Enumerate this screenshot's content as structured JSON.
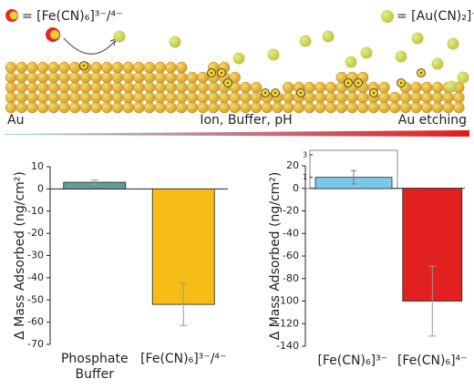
{
  "schematic": {
    "fe_legend": "= [Fe(CN)₆]³⁻/⁴⁻",
    "au_legend": "= [Au(CN)₂]⁻",
    "left_label": "Au",
    "middle_label": "Ion, Buffer, pH",
    "right_label": "Au etching"
  },
  "chart_data": [
    {
      "type": "bar",
      "ylabel": "Δ Mass Adsorbed (ng/cm²)",
      "categories": [
        "Phosphate Buffer",
        "[Fe(CN)₆]³⁻/⁴⁻"
      ],
      "values": [
        3,
        -52
      ],
      "errors": [
        1,
        9.5
      ],
      "colors": [
        "#5f9e98",
        "#f6bd16"
      ],
      "ylim": [
        -70,
        10
      ],
      "yticks": [
        10,
        0,
        -10,
        -20,
        -30,
        -40,
        -50,
        -60,
        -70
      ]
    },
    {
      "type": "bar",
      "ylabel": "Δ Mass Adsorbed (ng/cm²)",
      "categories": [
        "[Fe(CN)₆]³⁻",
        "[Fe(CN)₆]⁴⁻"
      ],
      "values": [
        1,
        -100
      ],
      "errors": [
        0.6,
        31
      ],
      "colors": [
        "#7cc8ea",
        "#e2201f"
      ],
      "ylim": [
        -140,
        20
      ],
      "yticks": [
        20,
        0,
        -20,
        -40,
        -60,
        -80,
        -100,
        -120,
        -140
      ],
      "inset": {
        "ylim": [
          0,
          3.4
        ],
        "yticks": [
          1,
          3
        ]
      }
    }
  ]
}
